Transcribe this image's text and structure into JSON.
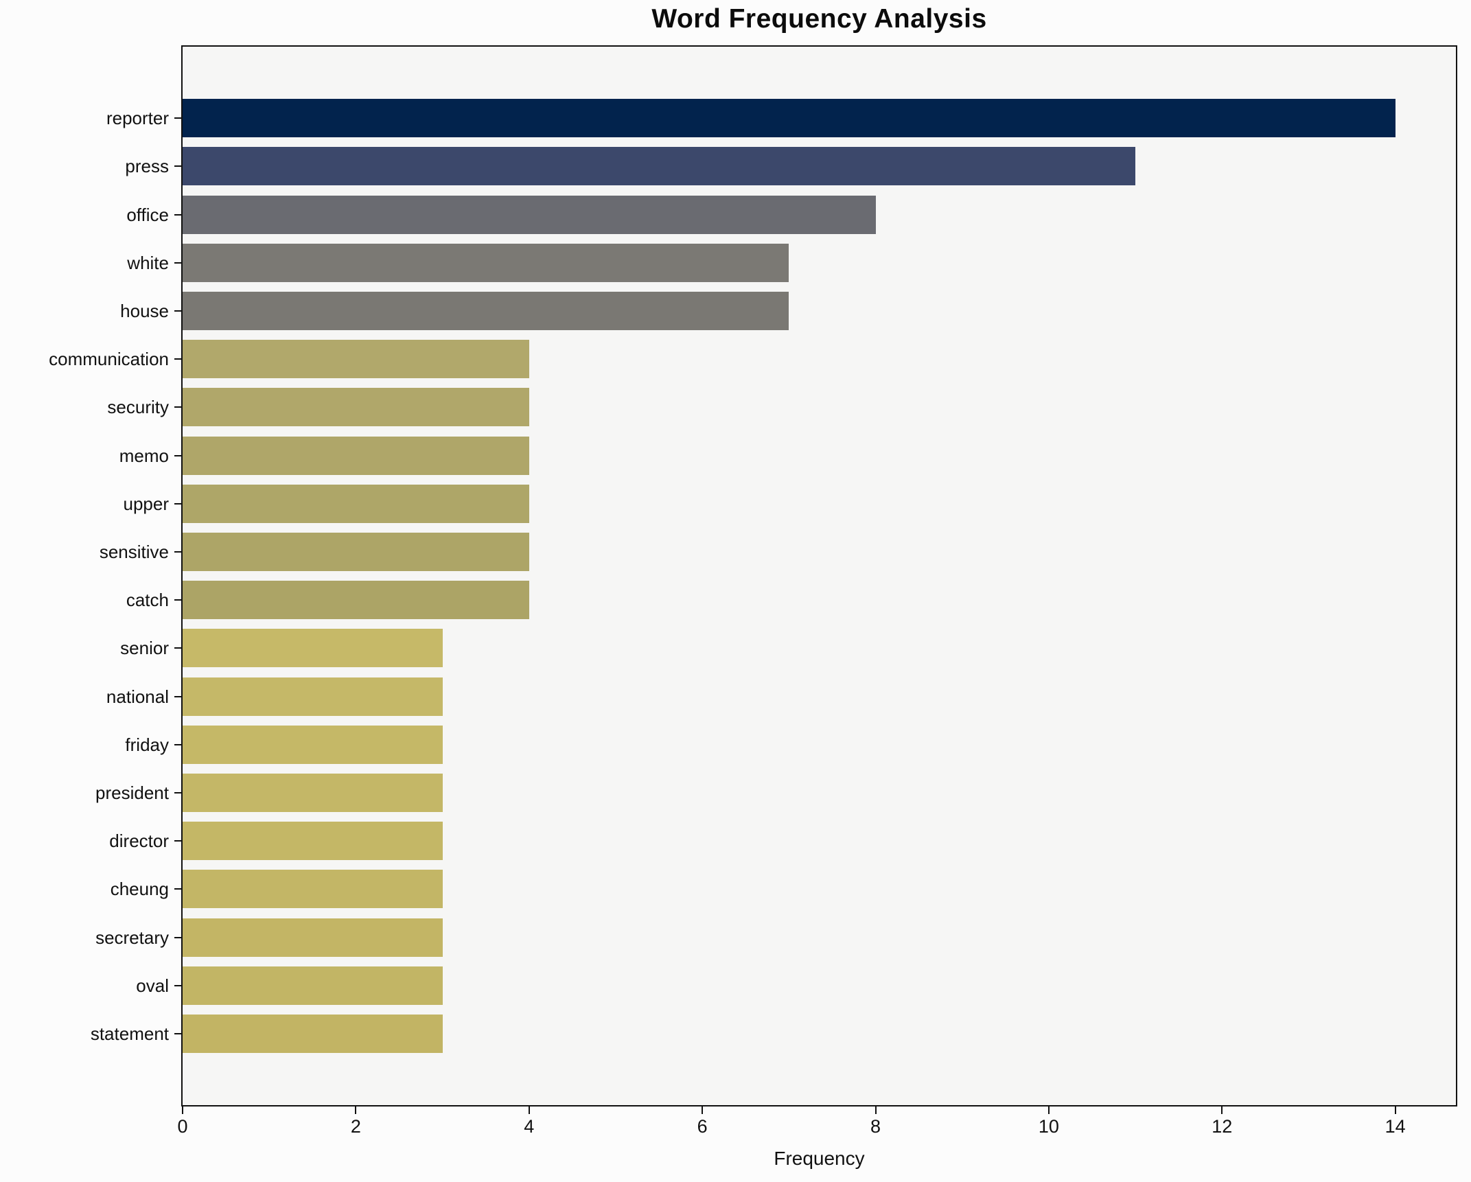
{
  "title": "Word Frequency Analysis",
  "chart_data": {
    "type": "bar",
    "orientation": "horizontal",
    "title": "Word Frequency Analysis",
    "xlabel": "Frequency",
    "ylabel": "",
    "categories": [
      "reporter",
      "press",
      "office",
      "white",
      "house",
      "communication",
      "security",
      "memo",
      "upper",
      "sensitive",
      "catch",
      "senior",
      "national",
      "friday",
      "president",
      "director",
      "cheung",
      "secretary",
      "oval",
      "statement"
    ],
    "values": [
      14,
      11,
      8,
      7,
      7,
      4,
      4,
      4,
      4,
      4,
      4,
      3,
      3,
      3,
      3,
      3,
      3,
      3,
      3,
      3
    ],
    "bar_colors": [
      "#02234d",
      "#3c486b",
      "#6a6b71",
      "#7b7974",
      "#7a7873",
      "#b1a86b",
      "#b0a76a",
      "#afa669",
      "#aea668",
      "#ada567",
      "#aca466",
      "#c6b968",
      "#c5b868",
      "#c5b867",
      "#c4b767",
      "#c4b766",
      "#c3b666",
      "#c3b565",
      "#c2b565",
      "#c2b464"
    ],
    "xticks": [
      0,
      2,
      4,
      6,
      8,
      10,
      12,
      14
    ],
    "xlim": [
      0,
      14.7
    ],
    "grid": false,
    "legend": false,
    "plot_background": "#f6f6f5",
    "figure_background": "#fcfcfc",
    "spine_color": "#111111"
  }
}
